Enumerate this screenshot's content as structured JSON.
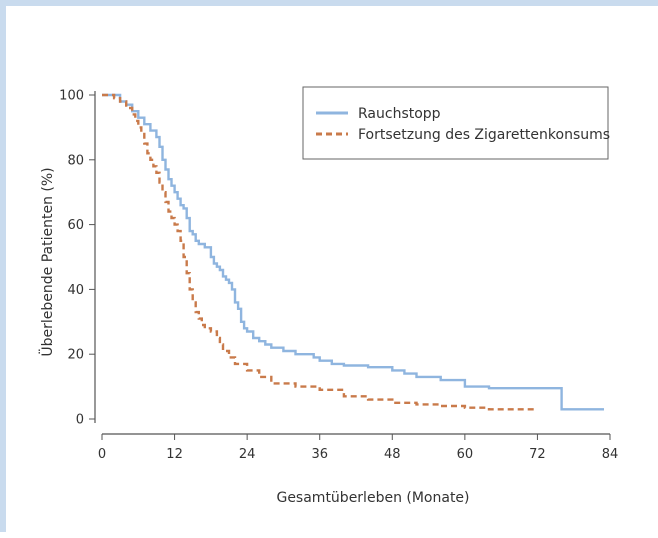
{
  "chart_data": {
    "type": "line",
    "xlabel": "Gesamtüberleben (Monate)",
    "ylabel": "Überlebende Patienten (%)",
    "xlim": [
      0,
      84
    ],
    "ylim": [
      0,
      100
    ],
    "xticks": [
      "0",
      "12",
      "24",
      "36",
      "48",
      "60",
      "72",
      "84"
    ],
    "yticks": [
      "0",
      "20",
      "40",
      "60",
      "80",
      "100"
    ],
    "grid": false,
    "legend_position": "top-right",
    "series": [
      {
        "name": "Rauchstopp",
        "color": "#8fb5df",
        "style": "solid",
        "x": [
          0,
          2.5,
          3,
          4,
          5,
          6,
          7,
          8,
          9,
          9.5,
          10,
          10.5,
          11,
          11.5,
          12,
          12.5,
          13,
          13.5,
          14,
          14.5,
          15,
          15.5,
          16,
          17,
          18,
          18.5,
          19,
          19.5,
          20,
          20.5,
          21,
          21.5,
          22,
          22.5,
          23,
          23.5,
          24,
          25,
          26,
          27,
          28,
          30,
          32,
          35,
          36,
          38,
          40,
          44,
          48,
          50,
          52,
          56,
          60,
          64,
          68,
          74,
          76,
          83
        ],
        "y": [
          100,
          100,
          98,
          97,
          95,
          93,
          91,
          89,
          87,
          84,
          80,
          77,
          74,
          72,
          70,
          68,
          66,
          65,
          62,
          58,
          57,
          55,
          54,
          53,
          50,
          48,
          47,
          46,
          44,
          43,
          42,
          40,
          36,
          34,
          30,
          28,
          27,
          25,
          24,
          23,
          22,
          21,
          20,
          19,
          18,
          17,
          16.5,
          16,
          15,
          14,
          13,
          12,
          10,
          9.5,
          9.5,
          9.5,
          3,
          3
        ]
      },
      {
        "name": "Fortsetzung des Zigarettenkonsums",
        "color": "#c97a4a",
        "style": "dashed",
        "x": [
          0,
          2,
          3,
          4,
          5,
          5.5,
          6,
          6.5,
          7,
          7.5,
          8,
          8.5,
          9,
          9.5,
          10,
          10.5,
          11,
          11.5,
          12,
          12.5,
          13,
          13.5,
          14,
          14.5,
          15,
          15.5,
          16,
          16.5,
          17,
          18,
          19,
          19.5,
          20,
          21,
          22,
          24,
          26,
          28,
          32,
          36,
          40,
          44,
          48,
          52,
          56,
          60,
          64,
          68,
          72
        ],
        "y": [
          100,
          99,
          98,
          96,
          94,
          92,
          90,
          88,
          85,
          82,
          80,
          78,
          76,
          73,
          70,
          67,
          64,
          62,
          60,
          58,
          55,
          50,
          45,
          40,
          36,
          33,
          31,
          29,
          28,
          27,
          25,
          23,
          21,
          19,
          17,
          15,
          13,
          11,
          10,
          9,
          7,
          6,
          5,
          4.5,
          4,
          3.5,
          3,
          3,
          3
        ]
      }
    ]
  }
}
